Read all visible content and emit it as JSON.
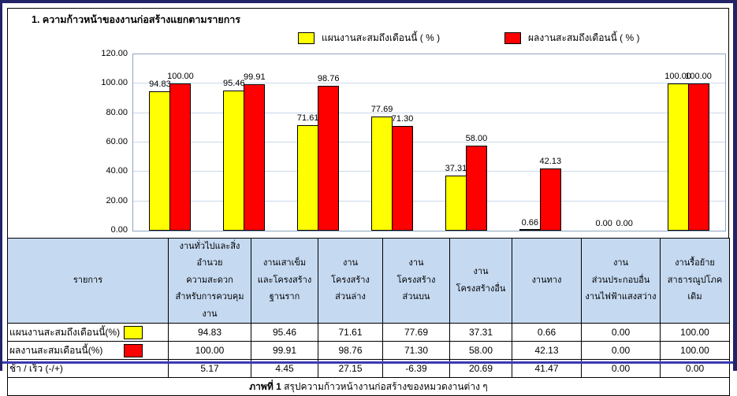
{
  "page": {
    "title": "1. ความก้าวหน้าของงานก่อสร้างแยกตามรายการ",
    "caption_prefix": "ภาพที่ 1",
    "caption_text": " สรุปความก้าวหน้างานก่อสร้างของหมวดงานต่าง ๆ"
  },
  "colors": {
    "plan": "#FFFF00",
    "actual": "#FF0000",
    "table_header_bg": "#C5D9F1",
    "gridline": "#C9D9EA",
    "frame_navy": "#232368",
    "bottom_line_blue": "#3A3AB2"
  },
  "legend": [
    {
      "label": "แผนงานสะสมถึงเดือนนี้  ( % )",
      "color": "#FFFF00"
    },
    {
      "label": "ผลงานสะสมถึงเดือนนี้  ( % )",
      "color": "#FF0000"
    }
  ],
  "chart_data": {
    "type": "bar",
    "title": "",
    "xlabel": "",
    "ylabel": "",
    "ylim": [
      0,
      120
    ],
    "ytick_step": 20,
    "ytick_labels": [
      "0.00",
      "20.00",
      "40.00",
      "60.00",
      "80.00",
      "100.00",
      "120.00"
    ],
    "grid": true,
    "legend_position": "top",
    "categories": [
      "งานทั่วไปและสิ่งอำนวยความสะดวกสำหรับการควบคุมงาน",
      "งานเสาเข็มและโครงสร้างฐานราก",
      "งานโครงสร้างส่วนล่าง",
      "งานโครงสร้างส่วนบน",
      "งานโครงสร้างอื่น",
      "งานทาง",
      "งานส่วนประกอบอื่น งานไฟฟ้าแสงสว่าง",
      "งานรื้อย้ายสาธารณูปโภคเดิม"
    ],
    "series": [
      {
        "name": "แผนงานสะสมถึงเดือนนี้ ( % )",
        "color": "#FFFF00",
        "values": [
          94.83,
          95.46,
          71.61,
          77.69,
          37.31,
          0.66,
          0.0,
          100.0
        ]
      },
      {
        "name": "ผลงานสะสมถึงเดือนนี้ ( % )",
        "color": "#FF0000",
        "values": [
          100.0,
          99.91,
          98.76,
          71.3,
          58.0,
          42.13,
          0.0,
          100.0
        ]
      }
    ]
  },
  "table": {
    "headers": [
      "รายการ",
      "งานทั่วไปและสิ่งอำนวย\nความสะดวก\nสำหรับการควบคุมงาน",
      "งานเสาเข็ม\nและโครงสร้าง\nฐานราก",
      "งาน\nโครงสร้าง\nส่วนล่าง",
      "งาน\nโครงสร้าง\nส่วนบน",
      "งาน\nโครงสร้างอื่น",
      "งานทาง",
      "งาน\nส่วนประกอบอื่น\nงานไฟฟ้าแสงสว่าง",
      "งานรื้อย้าย\nสาธารณูปโภคเดิม"
    ],
    "rows": [
      {
        "label": "แผนงานสะสมถึงเดือนนี้(%)",
        "swatch": "#FFFF00",
        "values": [
          "94.83",
          "95.46",
          "71.61",
          "77.69",
          "37.31",
          "0.66",
          "0.00",
          "100.00"
        ]
      },
      {
        "label": "ผลงานสะสมเดือนนี้(%)",
        "swatch": "#FF0000",
        "values": [
          "100.00",
          "99.91",
          "98.76",
          "71.30",
          "58.00",
          "42.13",
          "0.00",
          "100.00"
        ]
      },
      {
        "label": "ช้า / เร็ว  (-/+)",
        "swatch": null,
        "values": [
          "5.17",
          "4.45",
          "27.15",
          "-6.39",
          "20.69",
          "41.47",
          "0.00",
          "0.00"
        ]
      }
    ]
  }
}
